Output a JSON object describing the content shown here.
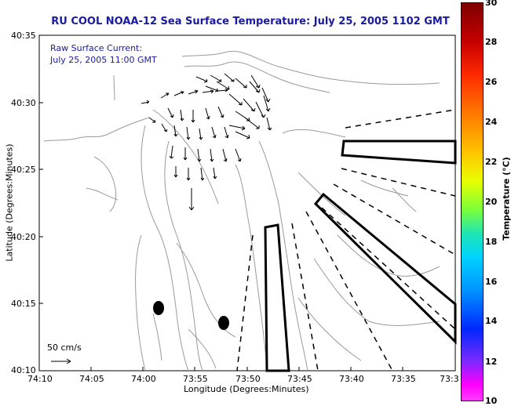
{
  "title": "RU COOL  NOAA-12  Sea Surface Temperature:  July 25, 2005 1102 GMT",
  "info": {
    "line1": "Raw Surface Current:",
    "line2": "July 25, 2005 11:00 GMT"
  },
  "axes": {
    "xlabel": "Longitude (Degrees:Minutes)",
    "ylabel": "Latitude (Degrees:Minutes)",
    "xticks": [
      "74:10",
      "74:05",
      "74:00",
      "73:55",
      "73:50",
      "73:45",
      "73:40",
      "73:35",
      "73:3"
    ],
    "yticks": [
      "40:35",
      "40:30",
      "40:25",
      "40:20",
      "40:15",
      "40:10"
    ]
  },
  "scale": {
    "label": "50 cm/s"
  },
  "colorbar": {
    "label": "Temperature (°C)",
    "ticks": [
      "30",
      "28",
      "26",
      "24",
      "22",
      "20",
      "18",
      "16",
      "14",
      "12",
      "10"
    ]
  },
  "colors": {
    "title": "#1a1aa0",
    "land_outline": "#999999",
    "vectors": "#000000"
  }
}
